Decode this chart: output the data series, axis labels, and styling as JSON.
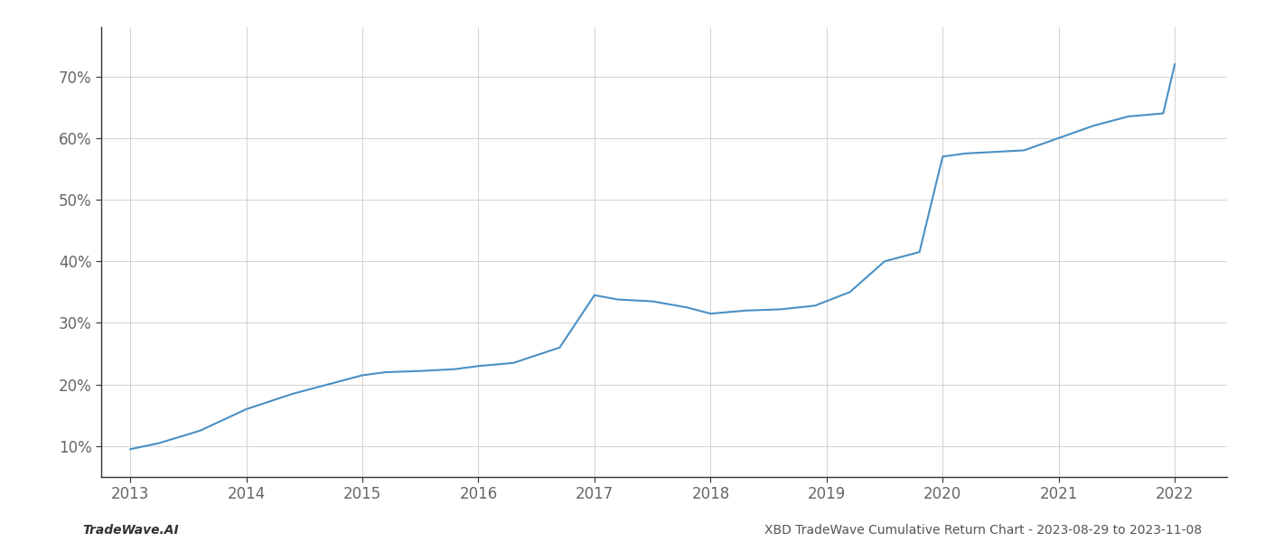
{
  "x_values": [
    2013.0,
    2013.25,
    2013.6,
    2014.0,
    2014.4,
    2014.8,
    2015.0,
    2015.2,
    2015.5,
    2015.8,
    2016.0,
    2016.3,
    2016.7,
    2017.0,
    2017.2,
    2017.5,
    2017.8,
    2018.0,
    2018.3,
    2018.6,
    2018.9,
    2019.2,
    2019.5,
    2019.8,
    2020.0,
    2020.2,
    2020.5,
    2020.7,
    2021.0,
    2021.3,
    2021.6,
    2021.9,
    2022.0
  ],
  "y_values": [
    9.5,
    10.5,
    12.5,
    16.0,
    18.5,
    20.5,
    21.5,
    22.0,
    22.2,
    22.5,
    23.0,
    23.5,
    26.0,
    34.5,
    33.8,
    33.5,
    32.5,
    31.5,
    32.0,
    32.2,
    32.8,
    35.0,
    40.0,
    41.5,
    57.0,
    57.5,
    57.8,
    58.0,
    60.0,
    62.0,
    63.5,
    64.0,
    72.0
  ],
  "line_color": "#4a90c4",
  "line_width": 1.5,
  "background_color": "#ffffff",
  "grid_color": "#cccccc",
  "footer_left": "TradeWave.AI",
  "footer_right": "XBD TradeWave Cumulative Return Chart - 2023-08-29 to 2023-11-08",
  "yticks": [
    10,
    20,
    30,
    40,
    50,
    60,
    70
  ],
  "ytick_labels": [
    "10%",
    "20%",
    "30%",
    "40%",
    "50%",
    "60%",
    "70%"
  ],
  "xticks": [
    2013,
    2014,
    2015,
    2016,
    2017,
    2018,
    2019,
    2020,
    2021,
    2022
  ],
  "xlim": [
    2012.75,
    2022.45
  ],
  "ylim": [
    5,
    78
  ],
  "tick_fontsize": 12,
  "footer_fontsize": 10,
  "spine_color": "#333333",
  "tick_color": "#666666",
  "label_color": "#666666"
}
